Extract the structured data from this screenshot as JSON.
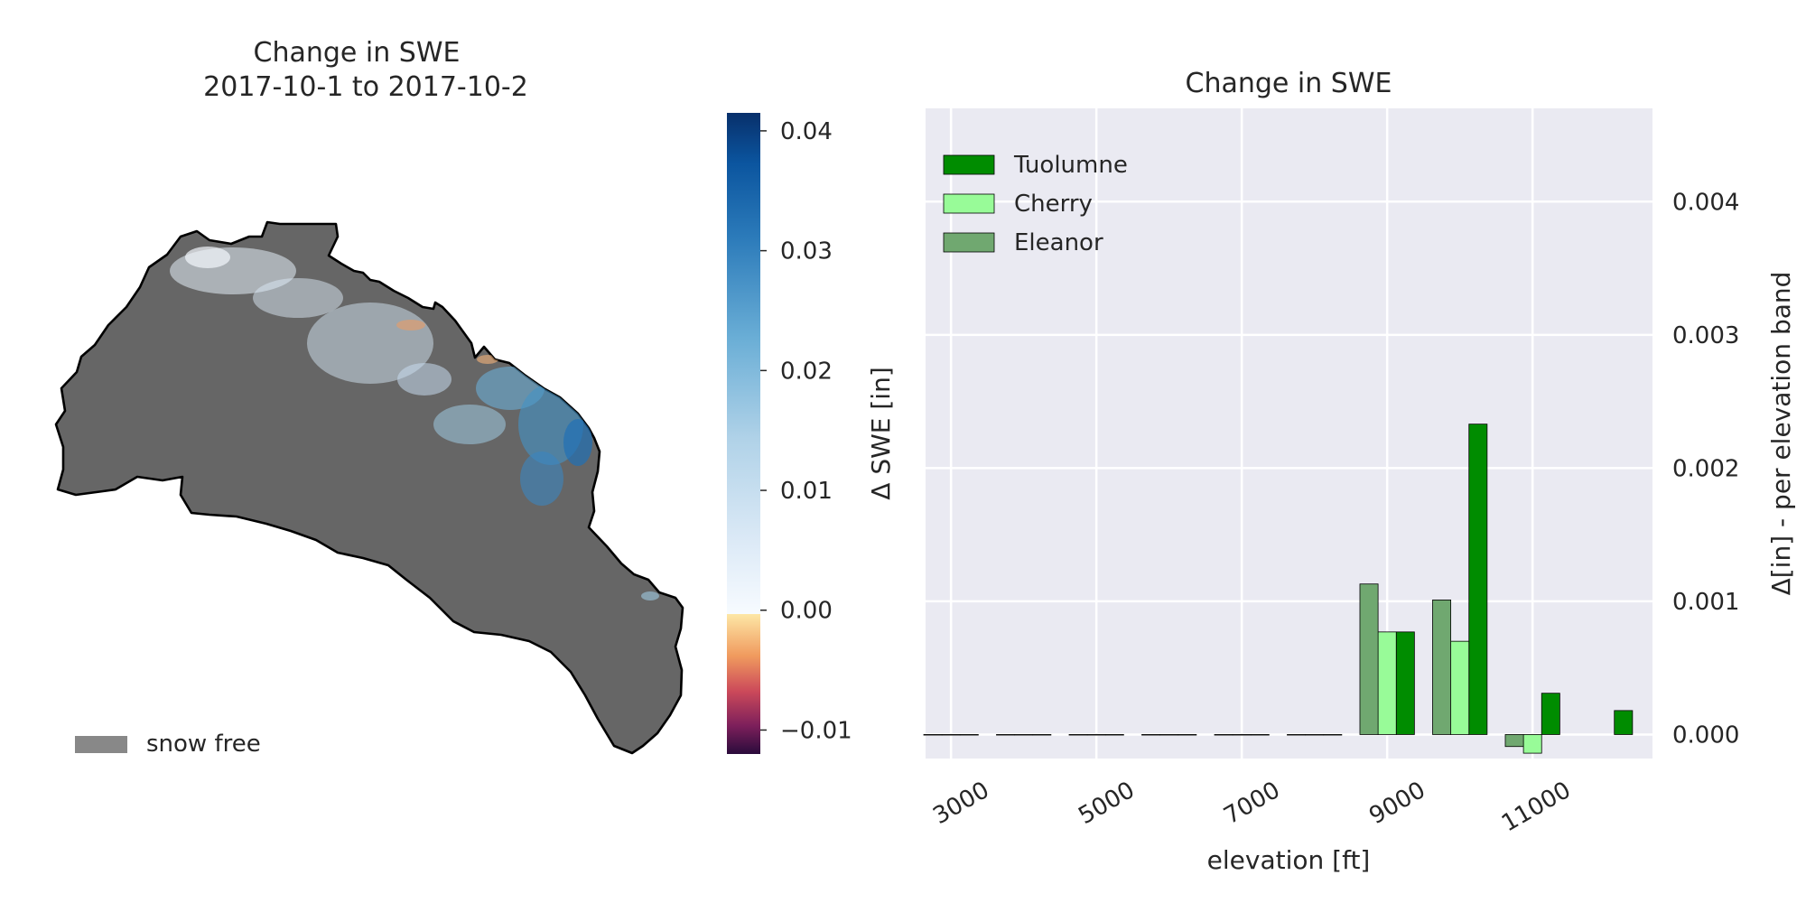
{
  "map_panel": {
    "title_line1": "Change in SWE",
    "title_line2": "2017-10-1 to 2017-10-2",
    "legend_label": "snow free",
    "snow_free_color": "#666666",
    "colorbar": {
      "label": "Δ SWE [in]",
      "ticks": [
        "0.04",
        "0.03",
        "0.02",
        "0.01",
        "0.00",
        "−0.01"
      ],
      "tick_values": [
        0.04,
        0.03,
        0.02,
        0.01,
        0.0,
        -0.01
      ],
      "range": [
        -0.012,
        0.0415
      ]
    }
  },
  "chart_data": {
    "type": "bar",
    "title": "Change in SWE",
    "xlabel": "elevation [ft]",
    "ylabel": "Δ[in] - per elevation band",
    "y_axis_side": "right",
    "xlim": [
      2650,
      12650
    ],
    "ylim": [
      -0.00018,
      0.0047
    ],
    "xticks": [
      3000,
      5000,
      7000,
      9000,
      11000
    ],
    "xtick_labels": [
      "3000",
      "5000",
      "7000",
      "9000",
      "11000"
    ],
    "yticks": [
      0.0,
      0.001,
      0.002,
      0.003,
      0.004
    ],
    "ytick_labels": [
      "0.000",
      "0.001",
      "0.002",
      "0.003",
      "0.004"
    ],
    "grid": true,
    "legend_position": "top-left",
    "bar_width_ft": 250,
    "series": [
      {
        "name": "Tuolumne",
        "color": "#008c00",
        "offset_ft": 250,
        "x": [
          3000,
          4000,
          5000,
          6000,
          7000,
          8000,
          9000,
          10000,
          11000,
          12000
        ],
        "values": [
          0,
          0,
          0,
          0,
          0,
          0,
          0.00077,
          0.00233,
          0.00031,
          0.00018
        ]
      },
      {
        "name": "Cherry",
        "color": "#98fb98",
        "offset_ft": 0,
        "x": [
          3000,
          4000,
          5000,
          6000,
          7000,
          8000,
          9000,
          10000,
          11000
        ],
        "values": [
          0,
          0,
          0,
          0,
          0,
          0,
          0.00077,
          0.0007,
          -0.00014
        ]
      },
      {
        "name": "Eleanor",
        "color": "#70a870",
        "offset_ft": -250,
        "x": [
          3000,
          4000,
          5000,
          6000,
          7000,
          8000,
          9000,
          10000,
          11000
        ],
        "values": [
          0,
          0,
          0,
          0,
          0,
          0,
          0.00113,
          0.00101,
          -9e-05
        ]
      }
    ]
  }
}
